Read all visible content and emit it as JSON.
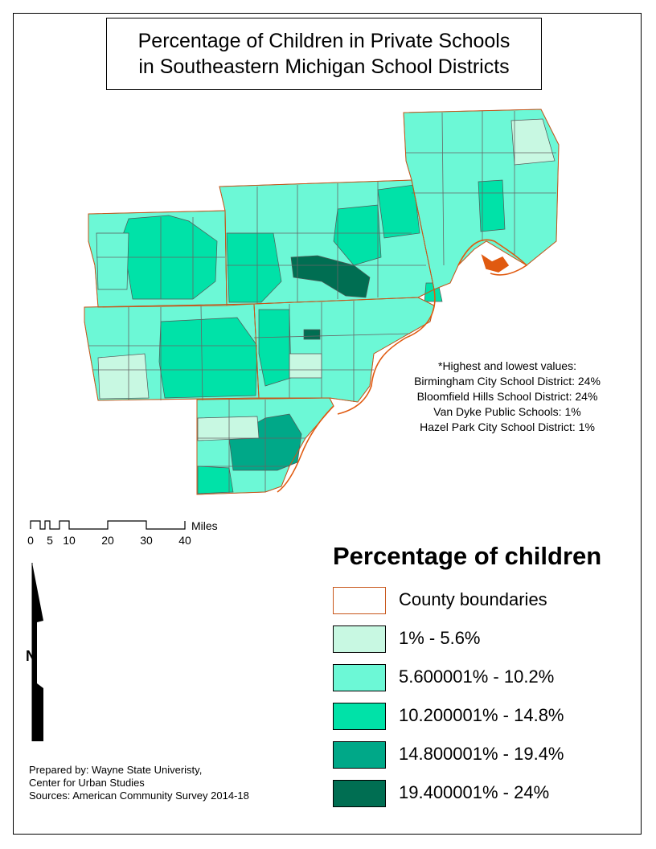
{
  "title": {
    "line1": "Percentage of Children in Private Schools",
    "line2": "in Southeastern Michigan School Districts"
  },
  "notes": {
    "heading": "*Highest and lowest values:",
    "items": [
      "Birmingham City School District: 24%",
      "Bloomfield Hills School District: 24%",
      "Van Dyke Public Schools: 1%",
      "Hazel Park City School District: 1%"
    ]
  },
  "scale_bar": {
    "ticks": [
      "0",
      "5",
      "10",
      "20",
      "30",
      "40"
    ],
    "tick_values": [
      0,
      5,
      10,
      20,
      30,
      40
    ],
    "units": "Miles"
  },
  "north_arrow": {
    "label": "N"
  },
  "legend": {
    "title": "Percentage of children",
    "items": [
      {
        "label": "County boundaries",
        "color": "#ffffff",
        "type": "outline",
        "outline": "#c8561a"
      },
      {
        "label": "1% - 5.6%",
        "color": "#c8f8e2"
      },
      {
        "label": "5.600001% - 10.2%",
        "color": "#6cf8d6"
      },
      {
        "label": "10.200001% - 14.8%",
        "color": "#00e2a8"
      },
      {
        "label": "14.800001% - 19.4%",
        "color": "#00a888"
      },
      {
        "label": "19.400001% - 24%",
        "color": "#006e52"
      }
    ]
  },
  "credits": {
    "line1": "Prepared by: Wayne State Univeristy,",
    "line2": "Center for Urban Studies",
    "line3": "Sources: American Community Survey 2014-18"
  },
  "colors": {
    "county_boundary": "#c8561a",
    "district_border": "#555555",
    "water": "#e05a10"
  }
}
